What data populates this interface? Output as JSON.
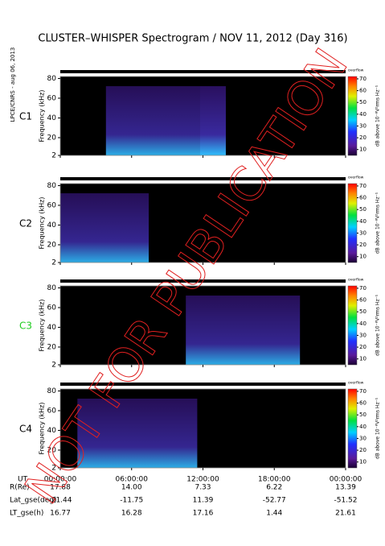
{
  "title": "CLUSTER–WHISPER Spectrogram / NOV 11, 2012 (Day 316)",
  "credit": "LPCE/CNRS - aug 06, 2013",
  "watermark": "NOT FOR PUBLICATION",
  "chart_data": [
    {
      "type": "spectrogram",
      "panel_label": "C1",
      "label_color": "#000000",
      "ylabel": "Frequency (kHz)",
      "ylim": [
        2,
        82
      ],
      "yticks": [
        2,
        20,
        40,
        60,
        80
      ],
      "colorbar": {
        "overflow_label": "overflow",
        "label": "dB above 10⁻⁸V²rms Hz⁻¹",
        "lim": [
          5,
          72
        ],
        "ticks": [
          10,
          20,
          30,
          40,
          50,
          60,
          70
        ]
      }
    },
    {
      "type": "spectrogram",
      "panel_label": "C2",
      "label_color": "#000000",
      "ylabel": "Frequency (kHz)",
      "ylim": [
        2,
        82
      ],
      "yticks": [
        2,
        20,
        40,
        60,
        80
      ],
      "colorbar": {
        "overflow_label": "overflow",
        "label": "dB above 10⁻⁸V²rms Hz⁻¹",
        "lim": [
          5,
          72
        ],
        "ticks": [
          10,
          20,
          30,
          40,
          50,
          60,
          70
        ]
      }
    },
    {
      "type": "spectrogram",
      "panel_label": "C3",
      "label_color": "#22cc22",
      "ylabel": "Frequency (kHz)",
      "ylim": [
        2,
        82
      ],
      "yticks": [
        2,
        20,
        40,
        60,
        80
      ],
      "colorbar": {
        "overflow_label": "overflow",
        "label": "dB above 10⁻⁸V²rms Hz⁻¹",
        "lim": [
          5,
          72
        ],
        "ticks": [
          10,
          20,
          30,
          40,
          50,
          60,
          70
        ]
      }
    },
    {
      "type": "spectrogram",
      "panel_label": "C4",
      "label_color": "#000000",
      "ylabel": "Frequency (kHz)",
      "ylim": [
        2,
        82
      ],
      "yticks": [
        2,
        20,
        40,
        60,
        80
      ],
      "xlim": [
        0,
        24
      ],
      "xticks": [
        {
          "value": 0,
          "label": "00:00:00"
        },
        {
          "value": 6,
          "label": "06:00:00"
        },
        {
          "value": 12,
          "label": "12:00:00"
        },
        {
          "value": 18,
          "label": "18:00:00"
        },
        {
          "value": 24,
          "label": "00:00:00"
        }
      ],
      "colorbar": {
        "overflow_label": "overflow",
        "label": "dB above 10⁻⁸V²rms Hz⁻¹",
        "lim": [
          5,
          72
        ],
        "ticks": [
          10,
          20,
          30,
          40,
          50,
          60,
          70
        ]
      }
    }
  ],
  "ephemeris": {
    "ut_label": "UT",
    "rows": [
      {
        "label": "R(Re)",
        "values": [
          "17.88",
          "14.00",
          "7.33",
          "6.22",
          "13.39"
        ]
      },
      {
        "label": "Lat_gse(deg)",
        "values": [
          "-21.44",
          "-11.75",
          "11.39",
          "-52.77",
          "-51.52"
        ]
      },
      {
        "label": "LT_gse(h)",
        "values": [
          "16.77",
          "16.28",
          "17.16",
          "1.44",
          "21.61"
        ]
      }
    ]
  }
}
